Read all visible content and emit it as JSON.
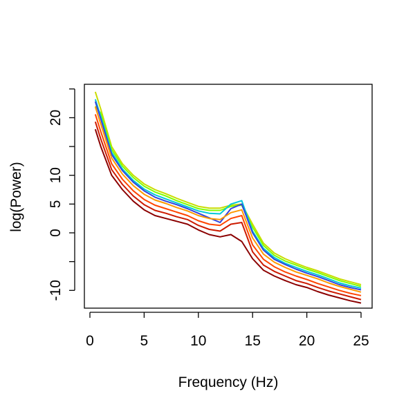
{
  "chart_data": {
    "type": "line",
    "title": "",
    "xlabel": "Frequency (Hz)",
    "ylabel": "log(Power)",
    "xlim": [
      0,
      25
    ],
    "ylim": [
      -13,
      25.5
    ],
    "x_ticks": [
      0,
      5,
      10,
      15,
      20,
      25
    ],
    "y_ticks": [
      25,
      20,
      15,
      10,
      5,
      0,
      -5,
      -10
    ],
    "y_tick_labels": [
      "",
      "20",
      "",
      "10",
      "5",
      "0",
      "",
      "-10"
    ],
    "grid": false,
    "legend": "none",
    "x": [
      0.5,
      1,
      2,
      3,
      4,
      5,
      6,
      7,
      8,
      9,
      10,
      11,
      12,
      13,
      14,
      15,
      16,
      17,
      18,
      19,
      20,
      21,
      22,
      23,
      24,
      25
    ],
    "series": [
      {
        "color": "#c8dc00",
        "values": [
          24.5,
          21.5,
          15,
          12,
          10,
          8.5,
          7.5,
          6.8,
          6,
          5.3,
          4.6,
          4.3,
          4.3,
          4.8,
          5,
          1.5,
          -1.8,
          -3.5,
          -4.5,
          -5.3,
          -6,
          -6.6,
          -7.3,
          -8,
          -8.5,
          -9
        ]
      },
      {
        "color": "#7fff00",
        "values": [
          22,
          20.8,
          14.5,
          11.6,
          9.6,
          8.1,
          7.1,
          6.4,
          5.6,
          4.9,
          4.2,
          3.9,
          3.9,
          4.6,
          4.8,
          1,
          -2.2,
          -3.9,
          -4.9,
          -5.6,
          -6.3,
          -6.9,
          -7.6,
          -8.3,
          -8.8,
          -9.3
        ]
      },
      {
        "color": "#00c8d8",
        "values": [
          23.2,
          20.2,
          14,
          11.1,
          9.1,
          7.6,
          6.6,
          5.9,
          5.2,
          4.5,
          3.8,
          3.4,
          3.3,
          5.0,
          5.6,
          0.3,
          -2.7,
          -4.3,
          -5.3,
          -6,
          -6.7,
          -7.3,
          -8,
          -8.7,
          -9.2,
          -9.6
        ]
      },
      {
        "color": "#3344dd",
        "values": [
          22.8,
          19.8,
          13.6,
          10.8,
          8.8,
          7.3,
          6.2,
          5.5,
          4.9,
          4.2,
          3.4,
          2.6,
          1.8,
          4.2,
          5.0,
          0,
          -3,
          -4.6,
          -5.5,
          -6.3,
          -7,
          -7.6,
          -8.3,
          -9,
          -9.5,
          -9.9
        ]
      },
      {
        "color": "#ff9900",
        "values": [
          21.9,
          18.9,
          13,
          10.2,
          8.2,
          6.7,
          5.7,
          5.1,
          4.4,
          3.8,
          3,
          2.5,
          2.3,
          3.5,
          4.0,
          -0.9,
          -3.7,
          -5.1,
          -6,
          -6.8,
          -7.4,
          -8,
          -8.7,
          -9.3,
          -9.8,
          -10.3
        ]
      },
      {
        "color": "#ff4500",
        "values": [
          20.6,
          17.6,
          12,
          9.3,
          7.3,
          5.8,
          4.8,
          4.2,
          3.6,
          3,
          2.1,
          1.5,
          1.3,
          2.5,
          3.0,
          -2.1,
          -4.6,
          -5.9,
          -6.8,
          -7.5,
          -8.1,
          -8.8,
          -9.4,
          -10,
          -10.5,
          -10.9
        ]
      },
      {
        "color": "#cc1a00",
        "values": [
          19.3,
          16.3,
          11,
          8.4,
          6.4,
          4.9,
          3.9,
          3.4,
          2.8,
          2.3,
          1.3,
          0.6,
          0.3,
          1.5,
          1.8,
          -3.3,
          -5.6,
          -6.7,
          -7.5,
          -8.3,
          -8.8,
          -9.5,
          -10.1,
          -10.6,
          -11.1,
          -11.6
        ]
      },
      {
        "color": "#8b0000",
        "values": [
          18,
          15,
          10,
          7.5,
          5.5,
          4,
          3,
          2.5,
          2,
          1.5,
          0.5,
          -0.3,
          -0.7,
          -0.3,
          -1.5,
          -4.5,
          -6.5,
          -7.5,
          -8.3,
          -9,
          -9.5,
          -10.2,
          -10.8,
          -11.3,
          -11.8,
          -12.2
        ]
      }
    ]
  }
}
